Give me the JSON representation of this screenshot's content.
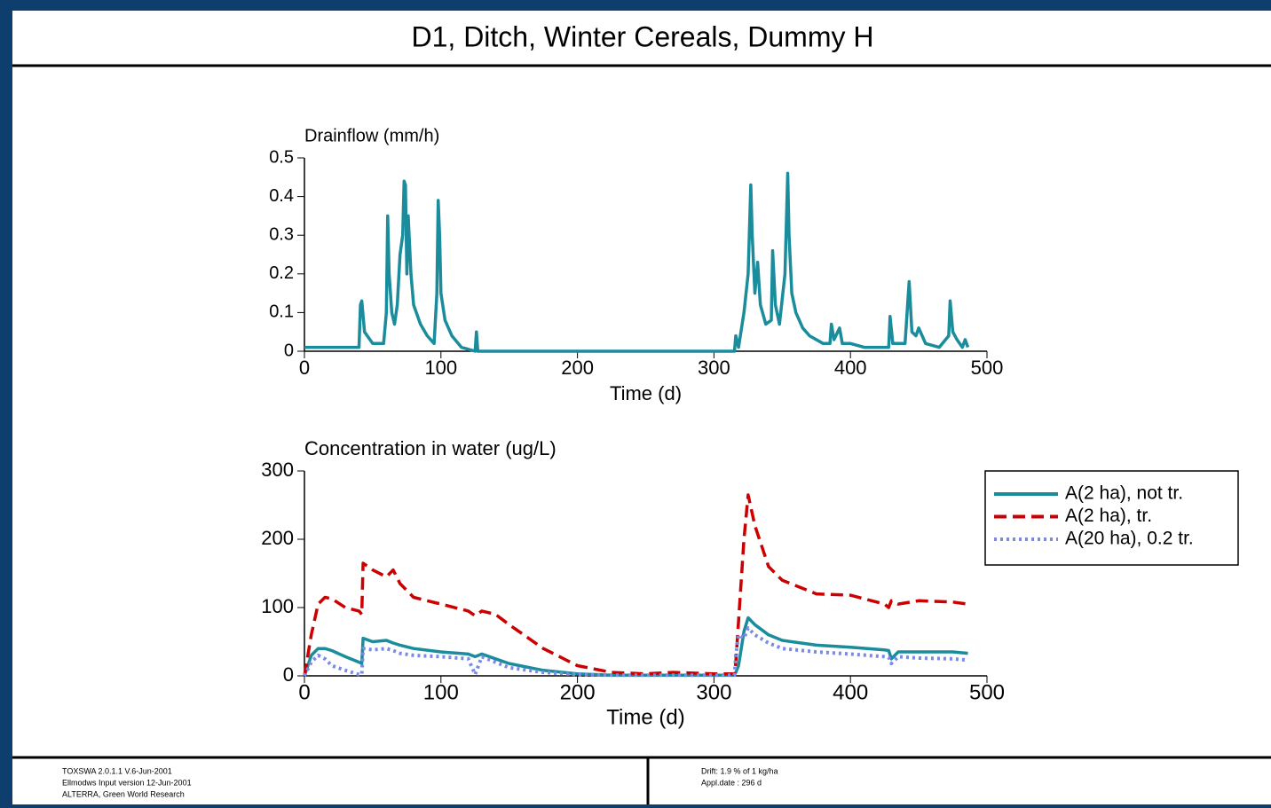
{
  "header": {
    "title": "D1, Ditch, Winter Cereals, Dummy H"
  },
  "footer": {
    "left": [
      "TOXSWA 2.0.1.1 V.6-Jun-2001",
      "Ellmodws Input version 12-Jun-2001",
      "ALTERRA, Green World Research"
    ],
    "middle": [
      "Drift: 1.9 % of 1 kg/ha",
      "Appl.date : 296 d"
    ]
  },
  "chart_data": [
    {
      "type": "line",
      "title": "Drainflow (mm/h)",
      "xlabel": "Time (d)",
      "color": "#1a8c9c",
      "x": [
        0,
        40,
        41,
        42,
        44,
        50,
        58,
        60,
        61,
        62,
        64,
        66,
        68,
        70,
        72,
        73,
        74,
        75,
        76,
        78,
        80,
        85,
        90,
        95,
        97,
        98,
        99,
        100,
        103,
        108,
        115,
        125,
        126,
        127,
        130,
        300,
        315,
        316,
        318,
        322,
        325,
        327,
        328,
        330,
        332,
        334,
        338,
        342,
        343,
        345,
        348,
        352,
        354,
        355,
        357,
        360,
        365,
        370,
        380,
        385,
        386,
        388,
        392,
        394,
        400,
        410,
        428,
        429,
        431,
        440,
        443,
        445,
        448,
        450,
        455,
        465,
        472,
        473,
        475,
        478,
        482,
        484,
        486
      ],
      "values": [
        0.01,
        0.01,
        0.12,
        0.13,
        0.05,
        0.02,
        0.02,
        0.1,
        0.35,
        0.2,
        0.1,
        0.07,
        0.12,
        0.25,
        0.3,
        0.44,
        0.43,
        0.2,
        0.35,
        0.2,
        0.12,
        0.07,
        0.04,
        0.02,
        0.15,
        0.39,
        0.3,
        0.15,
        0.08,
        0.04,
        0.01,
        0,
        0.05,
        0,
        0,
        0,
        0,
        0.04,
        0.01,
        0.1,
        0.2,
        0.43,
        0.3,
        0.15,
        0.23,
        0.12,
        0.07,
        0.08,
        0.26,
        0.12,
        0.07,
        0.2,
        0.46,
        0.3,
        0.15,
        0.1,
        0.06,
        0.04,
        0.02,
        0.02,
        0.07,
        0.03,
        0.06,
        0.02,
        0.02,
        0.01,
        0.01,
        0.09,
        0.02,
        0.02,
        0.18,
        0.05,
        0.04,
        0.06,
        0.02,
        0.01,
        0.04,
        0.13,
        0.05,
        0.03,
        0.01,
        0.03,
        0.01
      ],
      "xlim": [
        0,
        500
      ],
      "ylim": [
        0,
        0.5
      ],
      "xticks": [
        0,
        100,
        200,
        300,
        400,
        500
      ],
      "yticks": [
        0,
        0.1,
        0.2,
        0.3,
        0.4,
        0.5
      ]
    },
    {
      "type": "line",
      "title": "Concentration in water (ug/L)",
      "xlabel": "Time (d)",
      "x": [
        0,
        5,
        10,
        15,
        20,
        30,
        40,
        42,
        43,
        50,
        60,
        65,
        70,
        80,
        100,
        120,
        125,
        130,
        140,
        150,
        175,
        200,
        225,
        250,
        270,
        300,
        315,
        316,
        318,
        322,
        325,
        330,
        340,
        350,
        375,
        400,
        425,
        428,
        430,
        435,
        450,
        475,
        486
      ],
      "series": [
        {
          "name": "A(2 ha), not tr.",
          "color": "#1a8c9c",
          "linestyle": "solid",
          "values": [
            0,
            30,
            40,
            40,
            37,
            28,
            20,
            18,
            55,
            50,
            52,
            48,
            45,
            40,
            35,
            32,
            28,
            32,
            25,
            18,
            8,
            3,
            1,
            1,
            1,
            1,
            1,
            5,
            15,
            65,
            85,
            75,
            60,
            52,
            45,
            42,
            38,
            37,
            25,
            35,
            35,
            35,
            33
          ]
        },
        {
          "name": "A(2 ha), tr.",
          "color": "#cc0000",
          "linestyle": "dashed",
          "values": [
            0,
            60,
            105,
            115,
            113,
            100,
            95,
            90,
            165,
            155,
            145,
            155,
            135,
            115,
            105,
            95,
            88,
            95,
            90,
            75,
            40,
            15,
            5,
            3,
            5,
            3,
            3,
            20,
            80,
            200,
            265,
            220,
            160,
            140,
            120,
            118,
            105,
            100,
            110,
            105,
            110,
            108,
            105
          ]
        },
        {
          "name": "A(20 ha), 0.2 tr.",
          "color": "#7a8ae6",
          "linestyle": "dotted",
          "values": [
            0,
            20,
            30,
            25,
            15,
            8,
            2,
            2,
            40,
            38,
            40,
            37,
            33,
            30,
            28,
            25,
            2,
            28,
            20,
            12,
            5,
            2,
            1,
            1,
            1,
            1,
            1,
            30,
            60,
            55,
            70,
            60,
            48,
            40,
            35,
            32,
            28,
            27,
            18,
            28,
            26,
            25,
            23
          ]
        }
      ],
      "xlim": [
        0,
        500
      ],
      "ylim": [
        0,
        300
      ],
      "xticks": [
        0,
        100,
        200,
        300,
        400,
        500
      ],
      "yticks": [
        0,
        100,
        200,
        300
      ]
    }
  ]
}
